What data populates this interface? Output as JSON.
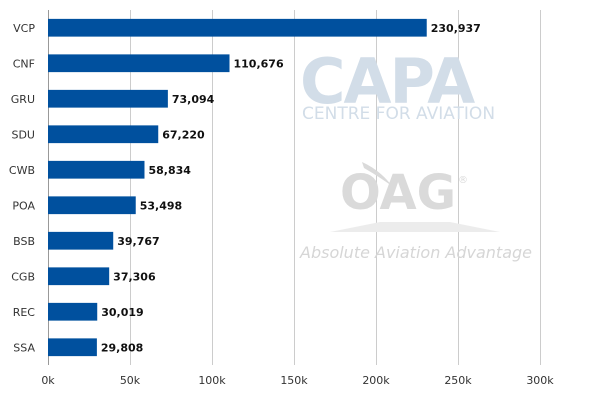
{
  "chart_data": {
    "type": "bar",
    "orientation": "horizontal",
    "title": "",
    "xlabel": "",
    "ylabel": "",
    "categories": [
      "VCP",
      "CNF",
      "GRU",
      "SDU",
      "CWB",
      "POA",
      "BSB",
      "CGB",
      "REC",
      "SSA"
    ],
    "values": [
      230937,
      110676,
      73094,
      67220,
      58834,
      53498,
      39767,
      37306,
      30019,
      29808
    ],
    "value_labels": [
      "230,937",
      "110,676",
      "73,094",
      "67,220",
      "58,834",
      "53,498",
      "39,767",
      "37,306",
      "30,019",
      "29,808"
    ],
    "xlim": [
      0,
      300000
    ],
    "x_ticks": [
      0,
      50000,
      100000,
      150000,
      200000,
      250000,
      300000
    ],
    "x_tick_labels": [
      "0k",
      "50k",
      "100k",
      "150k",
      "200k",
      "250k",
      "300k"
    ],
    "grid": "vertical",
    "legend": "none",
    "bar_color": "#00509e",
    "grid_color": "#cccccc"
  },
  "watermarks": {
    "capa_title": "CAPA",
    "capa_subtitle": "CENTRE FOR AVIATION",
    "oag_title": "OAG",
    "oag_registered": "®",
    "oag_subtitle": "Absolute Aviation Advantage"
  }
}
